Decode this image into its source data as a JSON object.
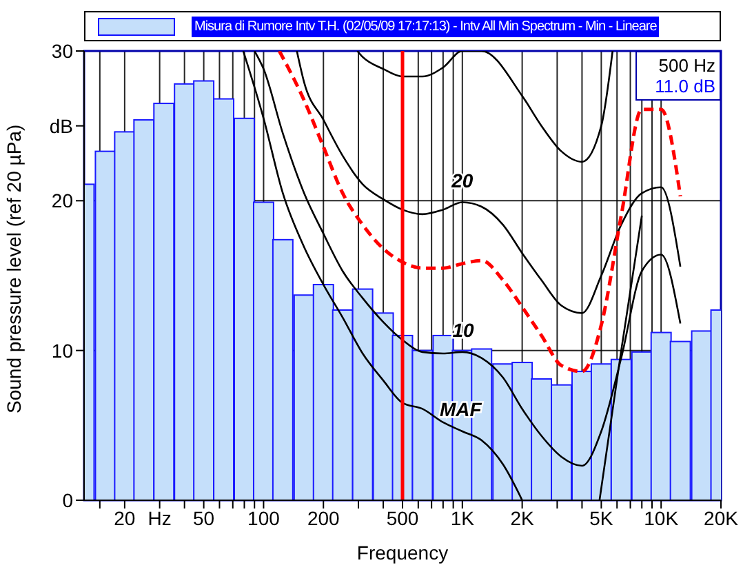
{
  "chart_data": {
    "type": "bar",
    "xlabel": "Frequency",
    "ylabel": "Sound pressure level (ref 20 µPa)",
    "log": "x",
    "x": [
      12.5,
      16,
      20,
      25,
      31.5,
      40,
      50,
      63,
      80,
      100,
      125,
      160,
      200,
      250,
      315,
      400,
      500,
      630,
      800,
      1000,
      1250,
      1600,
      2000,
      2500,
      3150,
      4000,
      5000,
      6300,
      8000,
      10000,
      12500,
      16000,
      20000
    ],
    "series": [
      {
        "name": "Misura di Rumore Intv T.H. (02/05/09 17:17:13) - Intv All Min Spectrum - Min - Lineare",
        "color": "#c5dffa",
        "values": [
          21.1,
          23.3,
          24.6,
          25.4,
          26.5,
          27.8,
          28.0,
          26.8,
          25.5,
          19.9,
          17.4,
          13.7,
          14.4,
          12.7,
          14.1,
          12.5,
          11.0,
          10.0,
          11.0,
          10.0,
          10.1,
          9.1,
          9.2,
          8.1,
          7.7,
          8.6,
          9.1,
          9.4,
          9.9,
          11.2,
          10.6,
          11.3,
          12.7
        ]
      },
      {
        "type": "line",
        "color": "#000000",
        "line_style": "solid",
        "x": [
          79,
          100,
          125,
          160,
          200,
          250,
          315,
          400,
          500,
          630,
          800,
          1000,
          1250,
          1600,
          2000,
          3150,
          4900,
          6300,
          8000
        ],
        "values": [
          30,
          25.5,
          20.5,
          16.9,
          14.4,
          12.2,
          9.8,
          8,
          6.5,
          6.1,
          5.2,
          4.6,
          4.0,
          2.4,
          0,
          null,
          0,
          10,
          19
        ]
      },
      {
        "type": "line",
        "color": "#000000",
        "line_style": "solid",
        "x": [
          90,
          100,
          125,
          160,
          200,
          250,
          315,
          400,
          500,
          630,
          800,
          1000,
          1250,
          1600,
          2000,
          2500,
          3150,
          4000,
          5000,
          6300,
          8000,
          10000,
          12500
        ],
        "values": [
          30,
          28.8,
          24.5,
          20.5,
          17.8,
          15.3,
          13.5,
          11.9,
          10.7,
          9.9,
          9.8,
          9.9,
          9.5,
          8.2,
          6.1,
          4.3,
          2.9,
          2.3,
          4.6,
          9.5,
          15.3,
          16.4,
          11.8
        ]
      },
      {
        "type": "line",
        "color": "#000000",
        "line_style": "solid",
        "x": [
          147,
          160,
          200,
          250,
          315,
          400,
          500,
          630,
          800,
          1000,
          1250,
          1600,
          2000,
          2500,
          3150,
          4000,
          5000,
          6300,
          8000,
          10000,
          12500
        ],
        "values": [
          30,
          27.9,
          25.4,
          23.0,
          21.1,
          20.1,
          19.4,
          19.1,
          19.4,
          19.9,
          19.6,
          18.4,
          16.5,
          14.7,
          13.0,
          12.5,
          15.0,
          18.4,
          20.5,
          20.9,
          15.6
        ]
      },
      {
        "type": "line",
        "color": "#000000",
        "line_style": "solid",
        "x": [
          296,
          315,
          400,
          500,
          630,
          800,
          1000,
          1250,
          2000,
          2500,
          3150,
          4000,
          5000,
          5700
        ],
        "values": [
          30,
          29.6,
          28.8,
          28.3,
          28.3,
          28.9,
          30,
          30,
          27.0,
          25.0,
          23.3,
          22.6,
          25.0,
          30
        ]
      },
      {
        "type": "line",
        "color": "#ff0000",
        "line_style": "dashed",
        "x": [
          120,
          160,
          200,
          250,
          315,
          400,
          500,
          630,
          800,
          1000,
          1250,
          1600,
          2000,
          2500,
          3150,
          4000,
          5000,
          6300,
          8000,
          10000,
          12500
        ],
        "values": [
          30,
          26.7,
          23.6,
          20.5,
          18.4,
          16.8,
          15.9,
          15.5,
          15.5,
          15.8,
          16.0,
          14.7,
          12.9,
          11.0,
          9.0,
          8.6,
          11.7,
          19.0,
          26.1,
          26.1,
          20.3
        ]
      }
    ],
    "xlim": [
      12.5,
      20000
    ],
    "xticks": [
      {
        "value": 15,
        "label": null
      },
      20,
      {
        "value": 30,
        "label": "Hz"
      },
      {
        "value": 40,
        "label": null
      },
      50,
      {
        "value": 60,
        "label": null
      },
      {
        "value": 70,
        "label": null
      },
      {
        "value": 80,
        "label": null
      },
      {
        "value": 90,
        "label": null
      },
      100,
      200,
      {
        "value": 300,
        "label": null
      },
      {
        "value": 400,
        "label": null
      },
      500,
      {
        "value": 600,
        "label": null
      },
      {
        "value": 700,
        "label": null
      },
      {
        "value": 800,
        "label": null
      },
      {
        "value": 900,
        "label": null
      },
      {
        "value": 1000,
        "label": "1K"
      },
      {
        "value": 2000,
        "label": "2K"
      },
      {
        "value": 3000,
        "label": null
      },
      {
        "value": 4000,
        "label": null
      },
      {
        "value": 5000,
        "label": "5K"
      },
      {
        "value": 6000,
        "label": null
      },
      {
        "value": 7000,
        "label": null
      },
      {
        "value": 8000,
        "label": null
      },
      {
        "value": 9000,
        "label": null
      },
      {
        "value": 10000,
        "label": "10K"
      },
      {
        "value": 20000,
        "label": "20K"
      }
    ],
    "ylim": [
      0,
      30
    ],
    "yticks": [
      0,
      10,
      20,
      {
        "value": 25,
        "label": "dB"
      },
      30
    ],
    "grid": true,
    "legend": "top",
    "marker": "none",
    "ref_lines": [
      {
        "axis": "x",
        "value": 500,
        "color": "#ff0000"
      }
    ],
    "annotations": [
      "500 Hz",
      "11.0 dB",
      {
        "text": "MAF",
        "x": 980,
        "y": 4.6
      },
      {
        "text": "10",
        "x": 1010,
        "y": 9.9
      },
      {
        "text": "20",
        "x": 1000,
        "y": 19.9
      }
    ]
  }
}
